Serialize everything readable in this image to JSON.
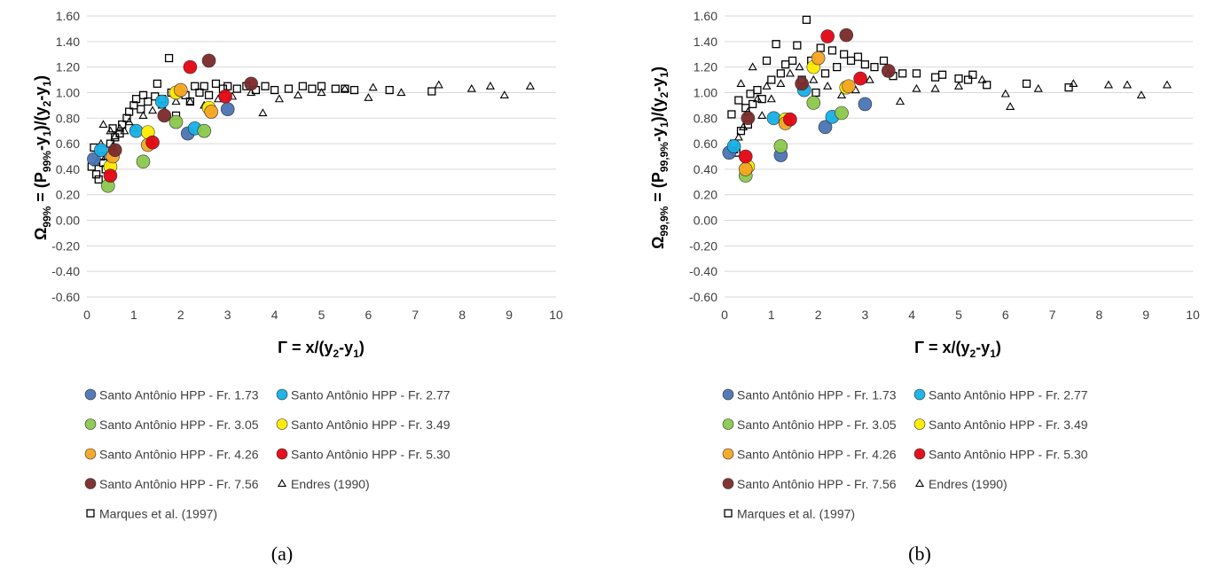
{
  "chart_data": [
    {
      "type": "scatter",
      "panel_label": "(a)",
      "xlim": [
        0,
        10
      ],
      "ylim": [
        -0.6,
        1.6
      ],
      "x_ticks": [
        "0",
        "1",
        "2",
        "3",
        "4",
        "5",
        "6",
        "7",
        "8",
        "9",
        "10"
      ],
      "y_ticks": [
        "-0.60",
        "-0.40",
        "-0.20",
        "0.00",
        "0.20",
        "0.40",
        "0.60",
        "0.80",
        "1.00",
        "1.20",
        "1.40",
        "1.60"
      ],
      "grid": true,
      "legend_position": "bottom",
      "series": [
        {
          "name": "Santo Antônio HPP - Fr. 1.73",
          "marker": "circle",
          "color": "#4a74b4",
          "points": [
            [
              0.15,
              0.48
            ],
            [
              2.15,
              0.68
            ],
            [
              3.0,
              0.87
            ]
          ]
        },
        {
          "name": "Santo Antônio HPP - Fr. 2.77",
          "marker": "circle",
          "color": "#16b0e6",
          "points": [
            [
              0.3,
              0.55
            ],
            [
              1.05,
              0.7
            ],
            [
              1.6,
              0.93
            ],
            [
              2.3,
              0.72
            ]
          ]
        },
        {
          "name": "Santo Antônio HPP - Fr. 3.05",
          "marker": "circle",
          "color": "#8cc84b",
          "points": [
            [
              0.45,
              0.27
            ],
            [
              1.2,
              0.46
            ],
            [
              1.9,
              0.77
            ],
            [
              2.5,
              0.7
            ]
          ]
        },
        {
          "name": "Santo Antônio HPP - Fr. 3.49",
          "marker": "circle",
          "color": "#ffec00",
          "points": [
            [
              0.5,
              0.42
            ],
            [
              1.3,
              0.69
            ],
            [
              1.9,
              1.0
            ],
            [
              2.6,
              0.88
            ]
          ]
        },
        {
          "name": "Santo Antônio HPP - Fr. 4.26",
          "marker": "circle",
          "color": "#f5a623",
          "points": [
            [
              0.55,
              0.5
            ],
            [
              1.3,
              0.59
            ],
            [
              2.0,
              1.02
            ],
            [
              2.65,
              0.85
            ]
          ]
        },
        {
          "name": "Santo Antônio HPP - Fr. 5.30",
          "marker": "circle",
          "color": "#e30613",
          "points": [
            [
              0.5,
              0.35
            ],
            [
              1.4,
              0.61
            ],
            [
              2.2,
              1.2
            ],
            [
              2.95,
              0.97
            ]
          ]
        },
        {
          "name": "Santo Antônio HPP - Fr. 7.56",
          "marker": "circle",
          "color": "#7b2a2a",
          "points": [
            [
              0.6,
              0.55
            ],
            [
              1.65,
              0.82
            ],
            [
              2.6,
              1.25
            ],
            [
              3.5,
              1.07
            ]
          ]
        },
        {
          "name": "Endres (1990)",
          "marker": "triangle",
          "color": "#000000",
          "points": [
            [
              0.2,
              0.45
            ],
            [
              0.3,
              0.6
            ],
            [
              0.35,
              0.75
            ],
            [
              0.4,
              0.5
            ],
            [
              0.5,
              0.7
            ],
            [
              0.55,
              0.58
            ],
            [
              0.6,
              0.66
            ],
            [
              0.7,
              0.72
            ],
            [
              0.8,
              0.7
            ],
            [
              0.9,
              0.77
            ],
            [
              1.0,
              0.72
            ],
            [
              1.2,
              0.82
            ],
            [
              1.4,
              0.86
            ],
            [
              1.6,
              0.9
            ],
            [
              1.9,
              0.93
            ],
            [
              2.2,
              0.93
            ],
            [
              2.5,
              0.9
            ],
            [
              2.8,
              0.95
            ],
            [
              3.1,
              0.97
            ],
            [
              3.5,
              1.0
            ],
            [
              3.75,
              0.84
            ],
            [
              4.1,
              0.95
            ],
            [
              4.5,
              0.98
            ],
            [
              5.0,
              1.0
            ],
            [
              5.5,
              1.03
            ],
            [
              6.0,
              0.96
            ],
            [
              6.1,
              1.04
            ],
            [
              6.7,
              1.0
            ],
            [
              7.5,
              1.06
            ],
            [
              8.2,
              1.03
            ],
            [
              8.6,
              1.05
            ],
            [
              8.9,
              0.98
            ],
            [
              9.45,
              1.05
            ]
          ]
        },
        {
          "name": "Marques et al. (1997)",
          "marker": "square",
          "color": "#000000",
          "points": [
            [
              0.1,
              0.42
            ],
            [
              0.15,
              0.57
            ],
            [
              0.2,
              0.36
            ],
            [
              0.25,
              0.32
            ],
            [
              0.3,
              0.5
            ],
            [
              0.35,
              0.45
            ],
            [
              0.4,
              0.4
            ],
            [
              0.5,
              0.6
            ],
            [
              0.55,
              0.72
            ],
            [
              0.6,
              0.65
            ],
            [
              0.7,
              0.68
            ],
            [
              0.75,
              0.75
            ],
            [
              0.85,
              0.8
            ],
            [
              0.9,
              0.85
            ],
            [
              1.0,
              0.9
            ],
            [
              1.05,
              0.95
            ],
            [
              1.15,
              0.87
            ],
            [
              1.2,
              0.98
            ],
            [
              1.3,
              0.93
            ],
            [
              1.45,
              0.97
            ],
            [
              1.5,
              1.07
            ],
            [
              1.6,
              0.95
            ],
            [
              1.75,
              1.27
            ],
            [
              1.8,
              1.0
            ],
            [
              1.9,
              0.82
            ],
            [
              2.1,
              0.98
            ],
            [
              2.2,
              0.93
            ],
            [
              2.3,
              1.05
            ],
            [
              2.4,
              1.0
            ],
            [
              2.5,
              1.05
            ],
            [
              2.6,
              0.98
            ],
            [
              2.75,
              1.07
            ],
            [
              2.9,
              1.03
            ],
            [
              3.0,
              1.05
            ],
            [
              3.2,
              1.03
            ],
            [
              3.4,
              1.05
            ],
            [
              3.6,
              1.02
            ],
            [
              3.8,
              1.05
            ],
            [
              4.0,
              1.02
            ],
            [
              4.3,
              1.03
            ],
            [
              4.6,
              1.05
            ],
            [
              4.8,
              1.03
            ],
            [
              5.0,
              1.05
            ],
            [
              5.3,
              1.03
            ],
            [
              5.5,
              1.03
            ],
            [
              5.7,
              1.02
            ],
            [
              6.45,
              1.02
            ],
            [
              7.35,
              1.01
            ]
          ]
        }
      ]
    },
    {
      "type": "scatter",
      "panel_label": "(b)",
      "xlim": [
        0,
        10
      ],
      "ylim": [
        -0.6,
        1.6
      ],
      "x_ticks": [
        "0",
        "1",
        "2",
        "3",
        "4",
        "5",
        "6",
        "7",
        "8",
        "9",
        "10"
      ],
      "y_ticks": [
        "-0.60",
        "-0.40",
        "-0.20",
        "0.00",
        "0.20",
        "0.40",
        "0.60",
        "0.80",
        "1.00",
        "1.20",
        "1.40",
        "1.60"
      ],
      "grid": true,
      "legend_position": "bottom",
      "series": [
        {
          "name": "Santo Antônio HPP - Fr. 1.73",
          "marker": "circle",
          "color": "#4a74b4",
          "points": [
            [
              0.1,
              0.53
            ],
            [
              1.2,
              0.51
            ],
            [
              2.15,
              0.73
            ],
            [
              3.0,
              0.91
            ]
          ]
        },
        {
          "name": "Santo Antônio HPP - Fr. 2.77",
          "marker": "circle",
          "color": "#16b0e6",
          "points": [
            [
              0.2,
              0.58
            ],
            [
              1.05,
              0.8
            ],
            [
              1.7,
              1.02
            ],
            [
              2.3,
              0.81
            ]
          ]
        },
        {
          "name": "Santo Antônio HPP - Fr. 3.05",
          "marker": "circle",
          "color": "#8cc84b",
          "points": [
            [
              0.45,
              0.35
            ],
            [
              1.2,
              0.58
            ],
            [
              1.9,
              0.92
            ],
            [
              2.5,
              0.84
            ]
          ]
        },
        {
          "name": "Santo Antônio HPP - Fr. 3.49",
          "marker": "circle",
          "color": "#ffec00",
          "points": [
            [
              0.5,
              0.42
            ],
            [
              1.3,
              0.79
            ],
            [
              1.9,
              1.2
            ],
            [
              2.6,
              1.04
            ]
          ]
        },
        {
          "name": "Santo Antônio HPP - Fr. 4.26",
          "marker": "circle",
          "color": "#f5a623",
          "points": [
            [
              0.45,
              0.4
            ],
            [
              1.3,
              0.76
            ],
            [
              2.0,
              1.27
            ],
            [
              2.65,
              1.05
            ]
          ]
        },
        {
          "name": "Santo Antônio HPP - Fr. 5.30",
          "marker": "circle",
          "color": "#e30613",
          "points": [
            [
              0.45,
              0.5
            ],
            [
              1.4,
              0.79
            ],
            [
              2.2,
              1.44
            ],
            [
              2.9,
              1.11
            ]
          ]
        },
        {
          "name": "Santo Antônio HPP - Fr. 7.56",
          "marker": "circle",
          "color": "#7b2a2a",
          "points": [
            [
              0.5,
              0.8
            ],
            [
              1.65,
              1.07
            ],
            [
              2.6,
              1.45
            ],
            [
              3.5,
              1.17
            ]
          ]
        },
        {
          "name": "Endres (1990)",
          "marker": "triangle",
          "color": "#000000",
          "points": [
            [
              0.2,
              0.55
            ],
            [
              0.3,
              0.65
            ],
            [
              0.35,
              1.07
            ],
            [
              0.4,
              0.73
            ],
            [
              0.5,
              0.85
            ],
            [
              0.6,
              1.2
            ],
            [
              0.7,
              0.95
            ],
            [
              0.8,
              0.82
            ],
            [
              0.9,
              1.05
            ],
            [
              1.0,
              0.95
            ],
            [
              1.2,
              1.07
            ],
            [
              1.4,
              1.15
            ],
            [
              1.6,
              1.2
            ],
            [
              1.9,
              1.1
            ],
            [
              2.2,
              1.05
            ],
            [
              2.5,
              0.98
            ],
            [
              2.8,
              1.02
            ],
            [
              3.1,
              1.1
            ],
            [
              3.5,
              1.15
            ],
            [
              3.75,
              0.93
            ],
            [
              4.1,
              1.03
            ],
            [
              4.5,
              1.03
            ],
            [
              5.0,
              1.05
            ],
            [
              5.5,
              1.1
            ],
            [
              6.0,
              0.99
            ],
            [
              6.1,
              0.89
            ],
            [
              6.7,
              1.03
            ],
            [
              7.45,
              1.07
            ],
            [
              8.2,
              1.06
            ],
            [
              8.6,
              1.06
            ],
            [
              8.9,
              0.98
            ],
            [
              9.45,
              1.06
            ]
          ]
        },
        {
          "name": "Marques et al. (1997)",
          "marker": "square",
          "color": "#000000",
          "points": [
            [
              0.15,
              0.83
            ],
            [
              0.2,
              0.6
            ],
            [
              0.25,
              0.53
            ],
            [
              0.3,
              0.94
            ],
            [
              0.35,
              0.7
            ],
            [
              0.45,
              0.88
            ],
            [
              0.5,
              0.75
            ],
            [
              0.55,
              0.99
            ],
            [
              0.6,
              0.91
            ],
            [
              0.7,
              1.02
            ],
            [
              0.8,
              0.95
            ],
            [
              0.9,
              1.25
            ],
            [
              1.0,
              1.1
            ],
            [
              1.1,
              1.38
            ],
            [
              1.2,
              1.15
            ],
            [
              1.3,
              1.22
            ],
            [
              1.45,
              1.25
            ],
            [
              1.55,
              1.37
            ],
            [
              1.65,
              1.1
            ],
            [
              1.75,
              1.57
            ],
            [
              1.85,
              1.25
            ],
            [
              1.95,
              1.0
            ],
            [
              2.05,
              1.35
            ],
            [
              2.15,
              1.15
            ],
            [
              2.3,
              1.33
            ],
            [
              2.4,
              1.2
            ],
            [
              2.55,
              1.3
            ],
            [
              2.7,
              1.25
            ],
            [
              2.85,
              1.28
            ],
            [
              3.0,
              1.22
            ],
            [
              3.2,
              1.2
            ],
            [
              3.4,
              1.25
            ],
            [
              3.6,
              1.13
            ],
            [
              3.8,
              1.15
            ],
            [
              4.1,
              1.15
            ],
            [
              4.5,
              1.12
            ],
            [
              4.65,
              1.14
            ],
            [
              5.0,
              1.11
            ],
            [
              5.2,
              1.1
            ],
            [
              5.3,
              1.14
            ],
            [
              5.6,
              1.06
            ],
            [
              6.45,
              1.07
            ],
            [
              7.35,
              1.04
            ]
          ]
        }
      ]
    }
  ],
  "panels": [
    {
      "xlabel_main": "Γ = x/(y",
      "xlabel_sub1": "2",
      "xlabel_mid": "-y",
      "xlabel_sub2": "1",
      "xlabel_end": ")",
      "ylabel_main": "Ω",
      "ylabel_sub_a": "99%",
      "ylabel_mid": " = (P",
      "ylabel_sub_b": "99%",
      "ylabel_mid2": "-y",
      "ylabel_sub_c": "1",
      "ylabel_mid3": ")/(y",
      "ylabel_sub_d": "2",
      "ylabel_mid4": "-y",
      "ylabel_sub_e": "1",
      "ylabel_end": ")"
    },
    {
      "xlabel_main": "Γ = x/(y",
      "xlabel_sub1": "2",
      "xlabel_mid": "-y",
      "xlabel_sub2": "1",
      "xlabel_end": ")",
      "ylabel_main": "Ω",
      "ylabel_sub_a": "99,9%",
      "ylabel_mid": " = (P",
      "ylabel_sub_b": "99,9%",
      "ylabel_mid2": "-y",
      "ylabel_sub_c": "1",
      "ylabel_mid3": ")/(y",
      "ylabel_sub_d": "2",
      "ylabel_mid4": "-y",
      "ylabel_sub_e": "1",
      "ylabel_end": ")"
    }
  ]
}
